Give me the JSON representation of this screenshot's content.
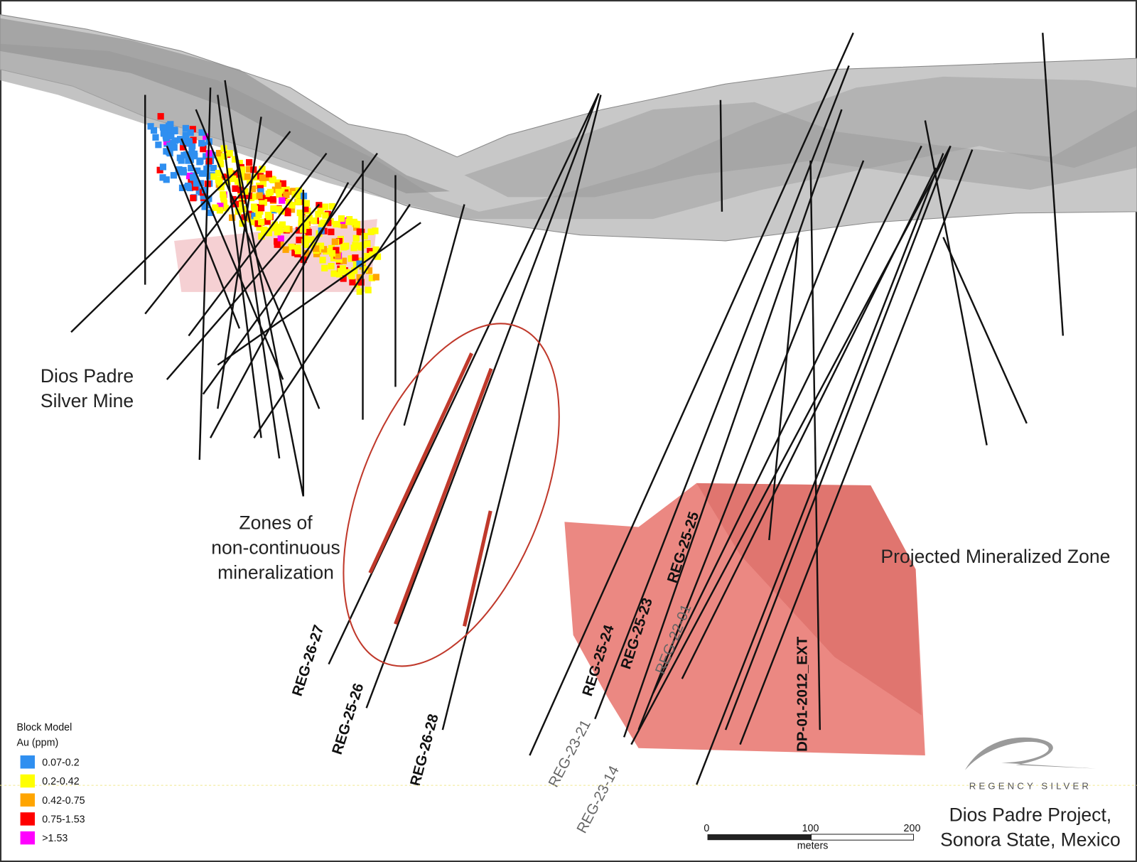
{
  "annotations": {
    "mine": [
      "Dios Padre",
      "Silver Mine"
    ],
    "zones": [
      "Zones of",
      "non-continuous",
      "mineralization"
    ],
    "projected": "Projected Mineralized Zone"
  },
  "drill_holes": [
    "REG-26-27",
    "REG-25-26",
    "REG-26-28",
    "REG-25-24",
    "REG-25-23",
    "REG-25-25",
    "REG-22-01",
    "REG-23-21",
    "REG-23-14",
    "DP-01-2012_EXT"
  ],
  "legend": {
    "title": [
      "Block Model",
      "Au (ppm)"
    ],
    "items": [
      {
        "label": "0.07-0.2",
        "color": "#2f8ff0"
      },
      {
        "label": "0.2-0.42",
        "color": "#ffff00"
      },
      {
        "label": "0.42-0.75",
        "color": "#ffa500"
      },
      {
        "label": "0.75-1.53",
        "color": "#ff0000"
      },
      {
        "label": ">1.53",
        "color": "#ff00ff"
      }
    ]
  },
  "scale_bar": {
    "ticks": [
      "0",
      "100",
      "200"
    ],
    "unit": "meters"
  },
  "logo": "REGENCY SILVER",
  "project": [
    "Dios Padre Project,",
    "Sonora State, Mexico"
  ]
}
